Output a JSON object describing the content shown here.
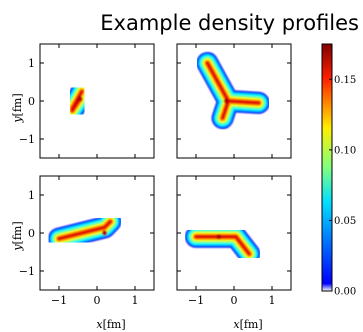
{
  "title": "Example density profiles",
  "chart_data": {
    "type": "heatmap",
    "title": "Example density profiles",
    "xlabel": "$x$[fm]",
    "ylabel": "$y$[fm]",
    "xlabel_text": "x[fm]",
    "ylabel_text": "y[fm]",
    "xlim": [
      -1.5,
      1.5
    ],
    "ylim": [
      -1.5,
      1.5
    ],
    "xticks": [
      -1,
      0,
      1
    ],
    "yticks": [
      -1,
      0,
      1
    ],
    "xtick_labels": [
      "−1",
      "0",
      "1"
    ],
    "ytick_labels": [
      "−1",
      "0",
      "1"
    ],
    "colorbar": {
      "range": [
        0,
        0.175
      ],
      "ticks": [
        0.0,
        0.05,
        0.1,
        0.15
      ],
      "tick_labels": [
        "0.00",
        "0.05",
        "0.10",
        "0.15"
      ],
      "colormap": "jet"
    },
    "panels": [
      {
        "position": "top-left",
        "shape": "compact blob",
        "segments": [
          {
            "from": [
              -0.65,
              -0.2
            ],
            "to": [
              -0.4,
              0.25
            ]
          },
          {
            "from": [
              -0.45,
              0.05
            ],
            "to": [
              -0.65,
              -0.25
            ]
          }
        ],
        "peak": [
          -0.45,
          0.05
        ],
        "peak_density": 0.16
      },
      {
        "position": "top-right",
        "shape": "three-armed (Y-shaped)",
        "segments": [
          {
            "from": [
              -0.7,
              1.0
            ],
            "to": [
              -0.15,
              0.0
            ]
          },
          {
            "from": [
              -0.15,
              0.0
            ],
            "to": [
              0.65,
              -0.05
            ]
          },
          {
            "from": [
              -0.15,
              0.0
            ],
            "to": [
              -0.3,
              -0.45
            ]
          }
        ],
        "peak": [
          -0.2,
          0.0
        ],
        "peak_density": 0.17
      },
      {
        "position": "bottom-left",
        "shape": "elongated diagonal",
        "segments": [
          {
            "from": [
              -1.0,
              -0.15
            ],
            "to": [
              0.2,
              0.15
            ]
          },
          {
            "from": [
              0.2,
              0.15
            ],
            "to": [
              0.35,
              0.3
            ]
          }
        ],
        "peak": [
          0.2,
          0.0
        ],
        "peak_density": 0.16
      },
      {
        "position": "bottom-right",
        "shape": "bent / L-shaped",
        "segments": [
          {
            "from": [
              -1.0,
              -0.1
            ],
            "to": [
              0.05,
              -0.1
            ]
          },
          {
            "from": [
              0.05,
              -0.1
            ],
            "to": [
              0.4,
              -0.55
            ]
          }
        ],
        "peak": [
          -0.4,
          -0.1
        ],
        "peak_density": 0.17
      }
    ]
  }
}
